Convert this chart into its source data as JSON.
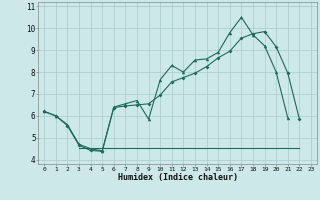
{
  "xlabel": "Humidex (Indice chaleur)",
  "bg_color": "#cce8e8",
  "grid_color": "#aacccc",
  "line_color": "#1a6b5a",
  "xlim": [
    -0.5,
    23.5
  ],
  "ylim": [
    3.8,
    11.2
  ],
  "xtick_positions": [
    0,
    1,
    2,
    3,
    4,
    5,
    6,
    7,
    8,
    9,
    10,
    11,
    12,
    13,
    14,
    15,
    16,
    17,
    18,
    19,
    20,
    21,
    22,
    23
  ],
  "xtick_labels": [
    "0",
    "1",
    "2",
    "3",
    "4",
    "5",
    "6",
    "7",
    "8",
    "9",
    "10",
    "11",
    "12",
    "13",
    "14",
    "15",
    "16",
    "17",
    "18",
    "19",
    "20",
    "21",
    "22",
    "23"
  ],
  "ytick_positions": [
    4,
    5,
    6,
    7,
    8,
    9,
    10,
    11
  ],
  "ytick_labels": [
    "4",
    "5",
    "6",
    "7",
    "8",
    "9",
    "10",
    "11"
  ],
  "line1_x": [
    0,
    1,
    2,
    3,
    4,
    5,
    6,
    7,
    8,
    9,
    10,
    11,
    12,
    13,
    14,
    15,
    16,
    17,
    18,
    19,
    20,
    21
  ],
  "line1_y": [
    6.2,
    6.0,
    5.6,
    4.7,
    4.5,
    4.4,
    6.4,
    6.55,
    6.7,
    5.85,
    7.65,
    8.3,
    8.0,
    8.55,
    8.6,
    8.9,
    9.8,
    10.5,
    9.7,
    9.2,
    8.0,
    5.9
  ],
  "line2_x": [
    0,
    1,
    2,
    3,
    4,
    5,
    6,
    7,
    8,
    9,
    10,
    11,
    12,
    13,
    14,
    15,
    16,
    17,
    18,
    19,
    20,
    21,
    22
  ],
  "line2_y": [
    6.2,
    6.0,
    5.55,
    4.65,
    4.42,
    4.38,
    6.38,
    6.45,
    6.5,
    6.55,
    6.95,
    7.55,
    7.75,
    7.95,
    8.25,
    8.65,
    8.95,
    9.55,
    9.75,
    9.85,
    9.15,
    7.95,
    5.85
  ],
  "line3_x": [
    3,
    22
  ],
  "line3_y": [
    4.55,
    4.55
  ]
}
